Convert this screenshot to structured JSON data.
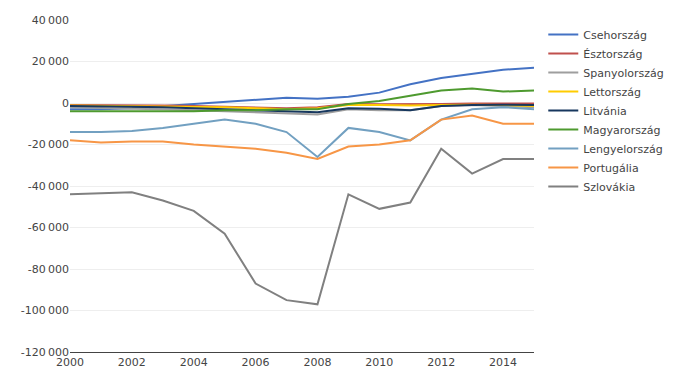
{
  "chart_data": {
    "type": "line",
    "x": [
      2000,
      2001,
      2002,
      2003,
      2004,
      2005,
      2006,
      2007,
      2008,
      2009,
      2010,
      2011,
      2012,
      2013,
      2014,
      2015
    ],
    "series": [
      {
        "name": "Csehország",
        "color": "#4472C4",
        "values": [
          -3000,
          -3000,
          -2500,
          -1500,
          -500,
          500,
          1500,
          2500,
          2000,
          3000,
          5000,
          9000,
          12000,
          14000,
          16000,
          17000
        ]
      },
      {
        "name": "Észtország",
        "color": "#C0504D",
        "values": [
          -1000,
          -1000,
          -1100,
          -1200,
          -1500,
          -1800,
          -2000,
          -2500,
          -2000,
          -500,
          -600,
          -700,
          -500,
          -300,
          -200,
          -200
        ]
      },
      {
        "name": "Spanyolország",
        "color": "#9E9E9E",
        "values": [
          -2000,
          -2500,
          -2800,
          -3000,
          -3500,
          -4000,
          -4500,
          -5000,
          -5500,
          -3000,
          -3500,
          -3500,
          -1500,
          -1000,
          -1500,
          -2000
        ]
      },
      {
        "name": "Lettország",
        "color": "#FFCC00",
        "values": [
          -1200,
          -1300,
          -1400,
          -1500,
          -1800,
          -2000,
          -2500,
          -3000,
          -2500,
          -1000,
          -1000,
          -1200,
          -1000,
          -800,
          -1000,
          -1500
        ]
      },
      {
        "name": "Litvánia",
        "color": "#17375E",
        "values": [
          -1500,
          -1800,
          -1800,
          -2000,
          -2500,
          -3000,
          -3500,
          -4000,
          -4500,
          -2500,
          -2800,
          -3500,
          -1500,
          -1000,
          -800,
          -1000
        ]
      },
      {
        "name": "Magyarország",
        "color": "#4E9A2F",
        "values": [
          -4000,
          -4000,
          -4200,
          -4000,
          -4000,
          -3500,
          -3500,
          -3000,
          -3000,
          -500,
          1000,
          3500,
          6000,
          7000,
          5500,
          6000
        ]
      },
      {
        "name": "Lengyelország",
        "color": "#72A0C1",
        "values": [
          -14000,
          -14000,
          -13500,
          -12000,
          -10000,
          -8000,
          -10000,
          -14000,
          -26000,
          -12000,
          -14000,
          -18000,
          -8000,
          -3000,
          -2000,
          -3000
        ]
      },
      {
        "name": "Portugália",
        "color": "#F79646",
        "values": [
          -18000,
          -19000,
          -18500,
          -18500,
          -20000,
          -21000,
          -22000,
          -24000,
          -27000,
          -21000,
          -20000,
          -18000,
          -8000,
          -6000,
          -10000,
          -10000
        ]
      },
      {
        "name": "Szlovákia",
        "color": "#808080",
        "values": [
          -44000,
          -43500,
          -43000,
          -47000,
          -52000,
          -63000,
          -87000,
          -95000,
          -97000,
          -44000,
          -51000,
          -48000,
          -22000,
          -34000,
          -27000,
          -27000
        ]
      }
    ],
    "xlim": [
      2000,
      2015
    ],
    "xticks": [
      2000,
      2002,
      2004,
      2006,
      2008,
      2010,
      2012,
      2014
    ],
    "ylim": [
      -120000,
      40000
    ],
    "yticks": [
      {
        "value": -120000,
        "label": "-120 000"
      },
      {
        "value": -100000,
        "label": "-100 000"
      },
      {
        "value": -80000,
        "label": "-80 000"
      },
      {
        "value": -60000,
        "label": "-60 000"
      },
      {
        "value": -40000,
        "label": "-40 000"
      },
      {
        "value": -20000,
        "label": "-20 000"
      },
      0,
      {
        "value": 20000,
        "label": "20 000"
      },
      {
        "value": 40000,
        "label": "40 000"
      }
    ],
    "grid": true,
    "legend": "right"
  }
}
